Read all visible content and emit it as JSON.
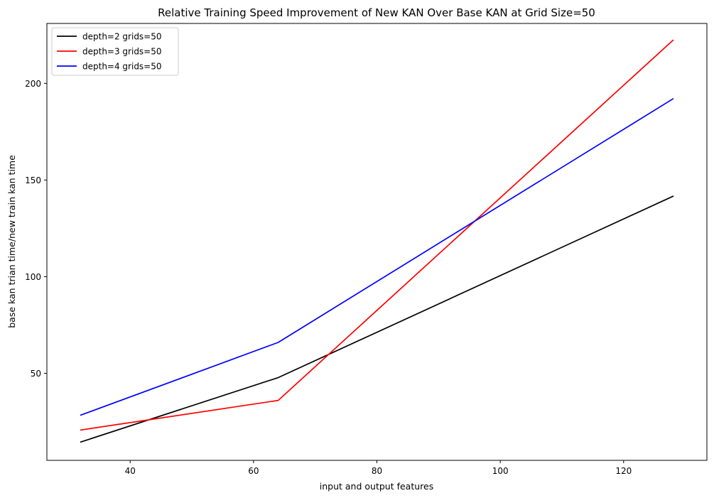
{
  "chart_data": {
    "type": "line",
    "title": "Relative Training Speed Improvement of New KAN Over Base KAN at Grid Size=50",
    "xlabel": "input and output features",
    "ylabel": "base kan trian time/new train kan time",
    "x": [
      32,
      64,
      128
    ],
    "xlim": [
      26.5,
      133.5
    ],
    "ylim": [
      5,
      231
    ],
    "xticks": [
      40,
      60,
      80,
      100,
      120
    ],
    "yticks": [
      50,
      100,
      150,
      200
    ],
    "grid": false,
    "legend_position": "upper left",
    "series": [
      {
        "name": "depth=2 grids=50",
        "color": "#000000",
        "values": [
          14.5,
          47.8,
          141.6
        ]
      },
      {
        "name": "depth=3 grids=50",
        "color": "#ff0000",
        "values": [
          20.7,
          36.0,
          222.3
        ]
      },
      {
        "name": "depth=4 grids=50",
        "color": "#0000ff",
        "values": [
          28.4,
          66.0,
          192.0
        ]
      }
    ]
  }
}
